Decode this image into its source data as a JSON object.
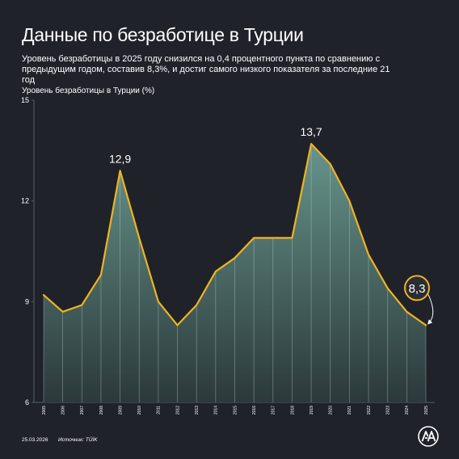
{
  "title": "Данные по безработице в Турции",
  "subtitle": "Уровень безработицы в 2025 году снизился на 0,4 процентного пункта по сравнению с предыдущим годом, составив 8,3%, и достиг самого низкого показателя за последние 21 год",
  "footer": {
    "date": "25.03.2026",
    "source": "Источник: TÜİK"
  },
  "colors": {
    "background": "#1f2228",
    "line": "#f0b321",
    "area": "#6a9a90"
  },
  "chart_data": {
    "type": "area",
    "title": "Данные по безработице в Турции",
    "ylabel": "Уровень безработицы в Турции (%)",
    "xlabel": "",
    "ylim": [
      6,
      15
    ],
    "yticks": [
      6,
      9,
      12,
      15
    ],
    "x": [
      "2005",
      "2006",
      "2007",
      "2008",
      "2009",
      "2010",
      "2011",
      "2012",
      "2013",
      "2014",
      "2015",
      "2016",
      "2017",
      "2018",
      "2019",
      "2020",
      "2021",
      "2022",
      "2023",
      "2024",
      "2025"
    ],
    "values": [
      9.2,
      8.7,
      8.9,
      9.8,
      12.9,
      10.9,
      9.0,
      8.3,
      8.9,
      9.9,
      10.3,
      10.9,
      10.9,
      10.9,
      13.7,
      13.1,
      12.0,
      10.4,
      9.4,
      8.7,
      8.3
    ],
    "annotations": [
      {
        "x": "2009",
        "label": "12,9"
      },
      {
        "x": "2019",
        "label": "13,7"
      },
      {
        "x": "2025",
        "label": "8,3",
        "highlight": true
      }
    ],
    "grid": "vertical"
  }
}
